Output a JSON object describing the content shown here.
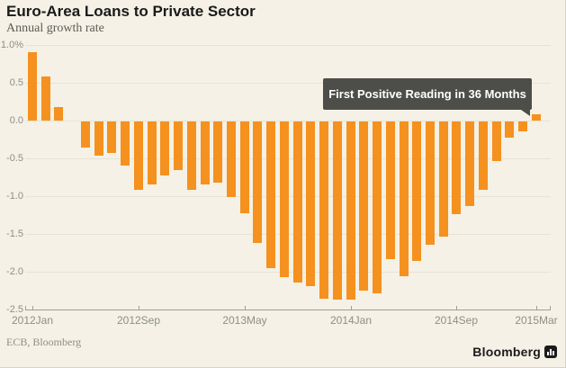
{
  "header": {
    "title": "Euro-Area Loans to Private Sector",
    "subtitle": "Annual growth rate"
  },
  "annotation": {
    "label": "First Positive Reading in 36 Months"
  },
  "footer": {
    "source": "ECB, Bloomberg",
    "brand": "Bloomberg",
    "brand_icon": "bar-chart-icon"
  },
  "colors": {
    "background": "#f5f1e6",
    "bar": "#f5911e",
    "grid": "#e7e3d5",
    "axis": "#a09e95",
    "tick_label": "#8e8e88",
    "annotation_bg": "#4d4d49",
    "annotation_text": "#ffffff",
    "title": "#1a1a1a",
    "subtitle": "#5c5c55"
  },
  "chart_data": {
    "type": "bar",
    "title": "Euro-Area Loans to Private Sector",
    "subtitle": "Annual growth rate",
    "ylabel": "Annual growth rate (%)",
    "xlabel": "",
    "grid": true,
    "legend": false,
    "ylim": [
      -2.5,
      1.0
    ],
    "y_ticks": [
      1.0,
      0.5,
      0.0,
      -0.5,
      -1.0,
      -1.5,
      -2.0,
      -2.5
    ],
    "y_tick_labels": [
      "1.0%",
      "0.5",
      "0.0",
      "-0.5",
      "-1.0",
      "-1.5",
      "-2.0",
      "-2.5"
    ],
    "x_tick_labels": [
      "2012Jan",
      "2012Sep",
      "2013May",
      "2014Jan",
      "2014Sep",
      "2015Mar"
    ],
    "x_tick_indices": [
      0,
      8,
      16,
      24,
      32,
      38
    ],
    "x": [
      "2012 Jan",
      "2012 Feb",
      "2012 Mar",
      "2012 Apr",
      "2012 May",
      "2012 Jun",
      "2012 Jul",
      "2012 Aug",
      "2012 Sep",
      "2012 Oct",
      "2012 Nov",
      "2012 Dec",
      "2013 Jan",
      "2013 Feb",
      "2013 Mar",
      "2013 Apr",
      "2013 May",
      "2013 Jun",
      "2013 Jul",
      "2013 Aug",
      "2013 Sep",
      "2013 Oct",
      "2013 Nov",
      "2013 Dec",
      "2014 Jan",
      "2014 Feb",
      "2014 Mar",
      "2014 Apr",
      "2014 May",
      "2014 Jun",
      "2014 Jul",
      "2014 Aug",
      "2014 Sep",
      "2014 Oct",
      "2014 Nov",
      "2014 Dec",
      "2015 Jan",
      "2015 Feb",
      "2015 Mar"
    ],
    "values": [
      0.9,
      0.58,
      0.18,
      0.0,
      -0.35,
      -0.45,
      -0.42,
      -0.58,
      -0.9,
      -0.83,
      -0.71,
      -0.64,
      -0.9,
      -0.83,
      -0.81,
      -1.0,
      -1.22,
      -1.61,
      -1.94,
      -2.06,
      -2.13,
      -2.18,
      -2.34,
      -2.36,
      -2.36,
      -2.24,
      -2.27,
      -1.82,
      -2.05,
      -1.85,
      -1.63,
      -1.52,
      -1.23,
      -1.12,
      -0.91,
      -0.52,
      -0.22,
      -0.13,
      0.08
    ],
    "annotation": "First Positive Reading in 36 Months"
  }
}
